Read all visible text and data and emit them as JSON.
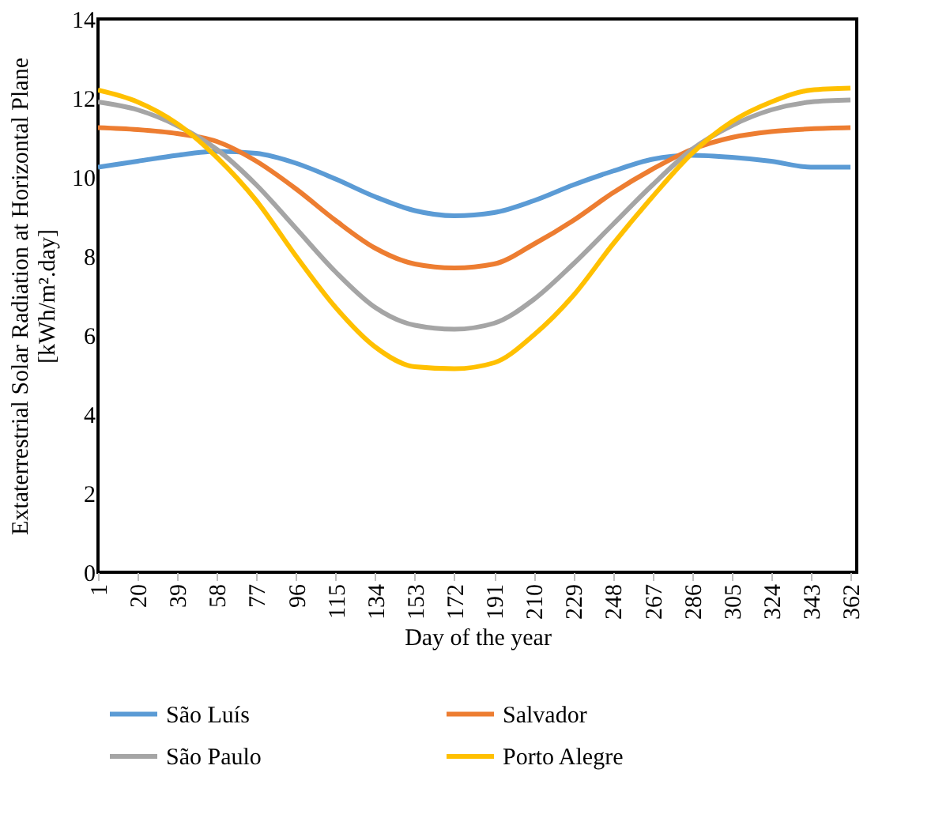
{
  "chart_data": {
    "type": "line",
    "xlabel": "Day of the year",
    "ylabel": "Extaterrestrial Solar Radiation at Horizontal Plane\n[kWh/m².day]",
    "x": [
      1,
      20,
      39,
      58,
      77,
      96,
      115,
      134,
      153,
      172,
      191,
      210,
      229,
      248,
      267,
      286,
      305,
      324,
      343,
      362
    ],
    "xlim": [
      1,
      365
    ],
    "xticks": [
      1,
      20,
      39,
      58,
      77,
      96,
      115,
      134,
      153,
      172,
      191,
      210,
      229,
      248,
      267,
      286,
      305,
      324,
      343,
      362
    ],
    "ylim": [
      0,
      14
    ],
    "yticks": [
      0,
      2,
      4,
      6,
      8,
      10,
      12,
      14
    ],
    "grid": false,
    "legend": "bottom",
    "marker": "none",
    "line_style": "solid",
    "series": [
      {
        "name": "São Luís",
        "color": "#5b9bd5",
        "values": [
          10.25,
          10.4,
          10.55,
          10.65,
          10.6,
          10.35,
          9.95,
          9.5,
          9.15,
          9.02,
          9.1,
          9.4,
          9.8,
          10.15,
          10.45,
          10.55,
          10.5,
          10.4,
          10.25,
          10.25
        ]
      },
      {
        "name": "Salvador",
        "color": "#ed7d31",
        "values": [
          11.25,
          11.2,
          11.1,
          10.9,
          10.4,
          9.7,
          8.9,
          8.2,
          7.8,
          7.7,
          7.8,
          8.3,
          8.9,
          9.6,
          10.2,
          10.7,
          11.0,
          11.15,
          11.22,
          11.25
        ]
      },
      {
        "name": "São Paulo",
        "color": "#a5a5a5",
        "values": [
          11.9,
          11.7,
          11.3,
          10.7,
          9.8,
          8.7,
          7.6,
          6.7,
          6.25,
          6.15,
          6.3,
          6.9,
          7.8,
          8.8,
          9.8,
          10.7,
          11.3,
          11.7,
          11.9,
          11.95
        ]
      },
      {
        "name": "Porto Alegre",
        "color": "#ffc000",
        "values": [
          12.2,
          11.9,
          11.35,
          10.5,
          9.4,
          8.0,
          6.7,
          5.7,
          5.2,
          5.15,
          5.3,
          6.0,
          7.0,
          8.3,
          9.5,
          10.6,
          11.4,
          11.9,
          12.2,
          12.25
        ]
      }
    ]
  }
}
